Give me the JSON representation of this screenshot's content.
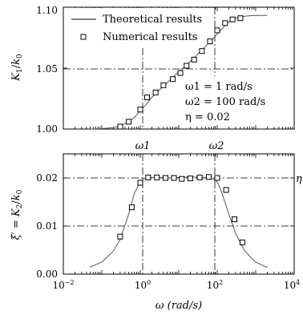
{
  "chart_data": [
    {
      "type": "line",
      "panel": "top",
      "x_scale": "log",
      "xlim": [
        0.01,
        10000
      ],
      "ylim": [
        1.0,
        1.1
      ],
      "yticks": [
        1.0,
        1.05,
        1.1
      ],
      "ytick_labels": [
        "1.00",
        "1.05",
        "1.10"
      ],
      "ylabel": "K1/k0",
      "grid": false,
      "legend_position": "top-left",
      "reference_lines": {
        "horizontal": [
          1.05
        ],
        "vertical": [
          1,
          100
        ]
      },
      "legend": [
        {
          "label": "Theoretical results",
          "marker": "line"
        },
        {
          "label": "Numerical results",
          "marker": "square"
        }
      ],
      "annotations": [
        "ω1 = 1 rad/s",
        "ω2 = 100 rad/s",
        "η = 0.02"
      ],
      "series": [
        {
          "name": "Theoretical results",
          "style": "line",
          "x": [
            0.05,
            0.1,
            0.2,
            0.3,
            0.5,
            0.7,
            1,
            1.5,
            2,
            3,
            5,
            7,
            10,
            15,
            20,
            30,
            50,
            70,
            100,
            150,
            200,
            300,
            500,
            700,
            1000,
            1500,
            2000
          ],
          "y": [
            1.0,
            1.0003,
            1.0012,
            1.0025,
            1.006,
            1.0095,
            1.015,
            1.021,
            1.026,
            1.0315,
            1.038,
            1.0425,
            1.047,
            1.052,
            1.0555,
            1.061,
            1.068,
            1.0725,
            1.078,
            1.084,
            1.088,
            1.091,
            1.0925,
            1.093,
            1.0932,
            1.0932,
            1.0932
          ]
        },
        {
          "name": "Numerical results",
          "style": "square",
          "x": [
            0.3,
            0.5,
            1,
            1.5,
            2.5,
            4,
            7,
            11,
            16,
            25,
            40,
            65,
            100,
            160,
            250,
            400
          ],
          "y": [
            1.002,
            1.006,
            1.016,
            1.026,
            1.03,
            1.036,
            1.041,
            1.046,
            1.052,
            1.057,
            1.064,
            1.072,
            1.081,
            1.087,
            1.09,
            1.091
          ]
        }
      ]
    },
    {
      "type": "line",
      "panel": "bottom",
      "x_scale": "log",
      "xlim": [
        0.01,
        10000
      ],
      "ylim": [
        0,
        0.025
      ],
      "xticks": [
        "10^-2",
        "10^0",
        "10^2",
        "10^4"
      ],
      "yticks": [
        0,
        0.01,
        0.02
      ],
      "ytick_labels": [
        "0.00",
        "0.01",
        "0.02"
      ],
      "xlabel": "ω (rad/s)",
      "ylabel": "ξ′ = K2/k0",
      "grid": false,
      "reference_lines": {
        "horizontal": [
          0.01,
          0.02
        ],
        "vertical": [
          1,
          100
        ]
      },
      "top_axis_labels": [
        "ω1",
        "ω2"
      ],
      "right_label": "η",
      "series": [
        {
          "name": "Theoretical results",
          "style": "line",
          "x": [
            0.05,
            0.1,
            0.2,
            0.3,
            0.5,
            0.7,
            1,
            1.2,
            1.5,
            2,
            3,
            5,
            10,
            20,
            40,
            70,
            100,
            120,
            150,
            200,
            300,
            500,
            800,
            1000,
            1500,
            2000
          ],
          "y": [
            0.0015,
            0.0025,
            0.0048,
            0.0072,
            0.0125,
            0.0168,
            0.0192,
            0.0198,
            0.02,
            0.0201,
            0.0201,
            0.02,
            0.0201,
            0.0202,
            0.0201,
            0.02,
            0.0192,
            0.0178,
            0.0155,
            0.0125,
            0.0085,
            0.005,
            0.0032,
            0.0025,
            0.0018,
            0.0014
          ]
        },
        {
          "name": "Numerical results",
          "style": "square",
          "x": [
            0.3,
            0.6,
            1,
            1.6,
            2.7,
            4.5,
            7.5,
            12,
            20,
            35,
            60,
            100,
            170,
            280,
            450
          ],
          "y": [
            0.0078,
            0.0139,
            0.019,
            0.0201,
            0.0201,
            0.02,
            0.02,
            0.0198,
            0.0199,
            0.0201,
            0.0202,
            0.02,
            0.0175,
            0.0114,
            0.0066
          ]
        }
      ]
    }
  ]
}
